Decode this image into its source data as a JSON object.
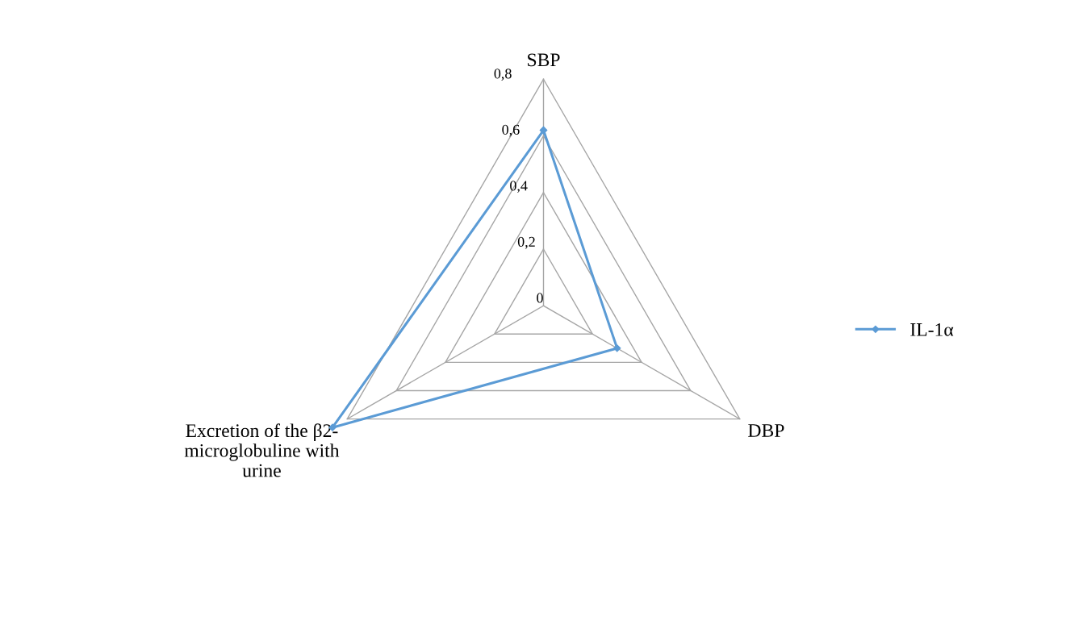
{
  "chart_data": {
    "type": "radar",
    "categories": [
      "SBP",
      "DBP",
      "Excretion of the β2-\nmicroglobuline with\nurine"
    ],
    "series": [
      {
        "name": "IL-1α",
        "color": "#5b9bd5",
        "values": [
          0.62,
          0.3,
          0.86
        ]
      }
    ],
    "ylim": [
      0,
      0.9
    ],
    "yticks": [
      {
        "value": 0,
        "label": "0"
      },
      {
        "value": 0.2,
        "label": "0,2"
      },
      {
        "value": 0.4,
        "label": "0,4"
      },
      {
        "value": 0.6,
        "label": "0,6"
      },
      {
        "value": 0.8,
        "label": "0,8"
      }
    ],
    "grid": true,
    "legend": "right",
    "marker": "diamond",
    "line_style": "solid"
  }
}
